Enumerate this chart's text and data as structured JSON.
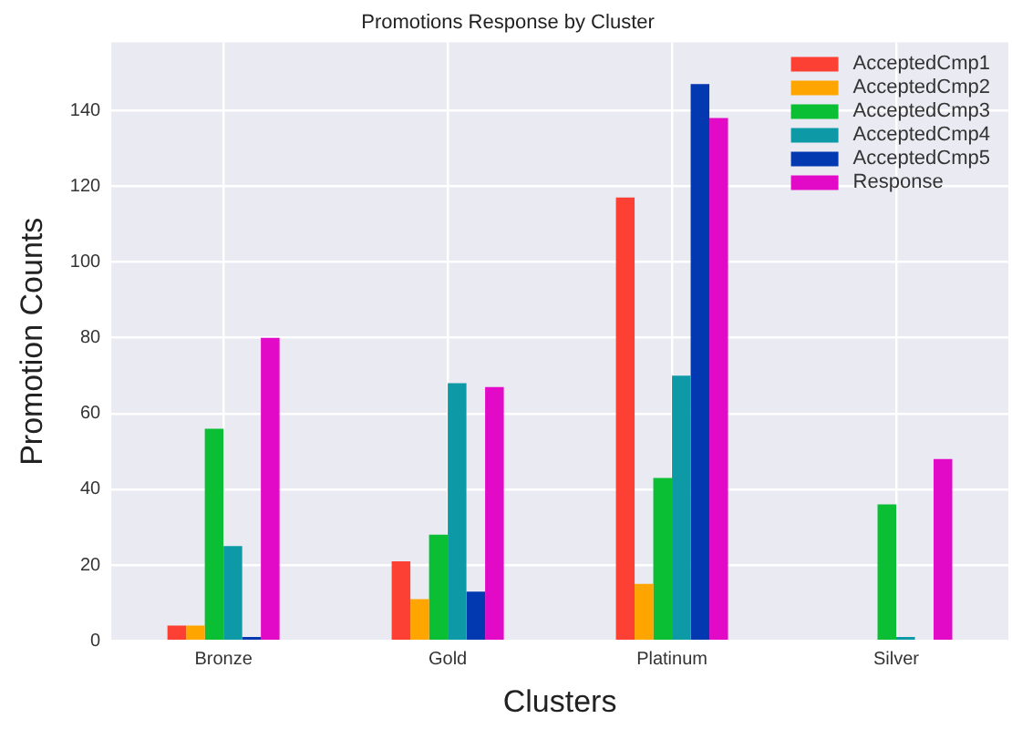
{
  "chart_data": {
    "type": "bar",
    "title": "Promotions Response by Cluster",
    "xlabel": "Clusters",
    "ylabel": "Promotion Counts",
    "categories": [
      "Bronze",
      "Gold",
      "Platinum",
      "Silver"
    ],
    "series": [
      {
        "name": "AcceptedCmp1",
        "color": "#fc4034",
        "values": [
          4,
          21,
          117,
          0
        ]
      },
      {
        "name": "AcceptedCmp2",
        "color": "#ffa500",
        "values": [
          4,
          11,
          15,
          0
        ]
      },
      {
        "name": "AcceptedCmp3",
        "color": "#0abf34",
        "values": [
          56,
          28,
          43,
          36
        ]
      },
      {
        "name": "AcceptedCmp4",
        "color": "#0d9aa6",
        "values": [
          25,
          68,
          70,
          1
        ]
      },
      {
        "name": "AcceptedCmp5",
        "color": "#0339b0",
        "values": [
          1,
          13,
          147,
          0
        ]
      },
      {
        "name": "Response",
        "color": "#e30ac7",
        "values": [
          80,
          67,
          138,
          48
        ]
      }
    ],
    "ylim": [
      0,
      158
    ],
    "yticks": [
      0,
      20,
      40,
      60,
      80,
      100,
      120,
      140
    ],
    "grid": true,
    "legend": "top right"
  }
}
